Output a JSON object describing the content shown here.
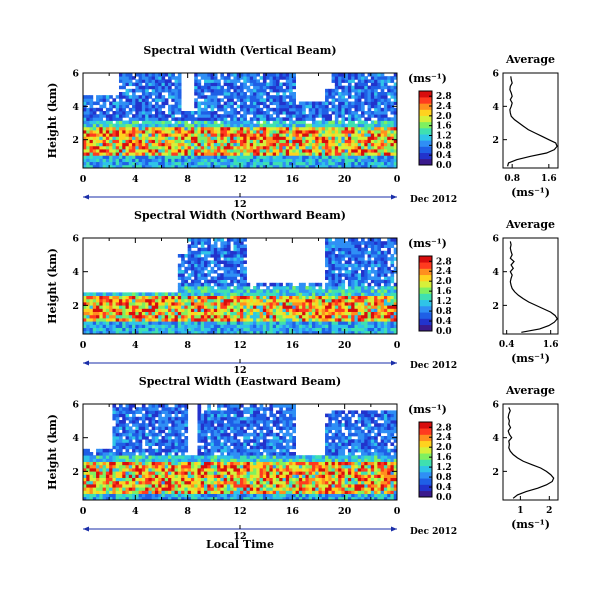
{
  "figure": {
    "date_label": "Dec 2012",
    "day_label": "12",
    "xlabel": "Local Time",
    "colorbar_unit": "(ms⁻¹)",
    "colormap": [
      "#3a1a8c",
      "#2233cc",
      "#1f5fe6",
      "#2f8ff5",
      "#2fc4e8",
      "#3fe0b0",
      "#7ff060",
      "#d6f03a",
      "#ffd21f",
      "#ff8f1f",
      "#ff3b1f",
      "#d80d0d"
    ]
  },
  "chart_data": [
    {
      "type": "heatmap",
      "title": "Spectral Width (Vertical Beam)",
      "xlabel": "Local Time",
      "ylabel": "Height (km)",
      "x_ticks": [
        "0",
        "4",
        "8",
        "12",
        "16",
        "20",
        "0"
      ],
      "y_ticks": [
        "2",
        "4",
        "6"
      ],
      "xlim": [
        0,
        24
      ],
      "ylim": [
        0.3,
        6
      ],
      "colorbar": {
        "label": "(ms⁻¹)",
        "ticks": [
          "0.0",
          "0.4",
          "0.8",
          "1.2",
          "1.6",
          "2.0",
          "2.4",
          "2.8"
        ],
        "range": [
          0,
          2.8
        ]
      },
      "profile": {
        "title": "Average",
        "xlabel": "(ms⁻¹)",
        "x_ticks": [
          "0.8",
          "1.6"
        ],
        "xlim": [
          0.6,
          1.8
        ],
        "y_ticks": [
          "2",
          "4",
          "6"
        ],
        "ylim": [
          0.3,
          6
        ],
        "height": [
          0.4,
          0.6,
          0.8,
          1.0,
          1.2,
          1.4,
          1.6,
          1.8,
          2.0,
          2.2,
          2.4,
          2.6,
          2.8,
          3.0,
          3.2,
          3.4,
          3.6,
          3.8,
          4.0,
          4.2,
          4.4,
          4.6,
          4.8,
          5.0,
          5.2,
          5.4,
          5.6,
          5.8
        ],
        "value": [
          0.7,
          0.72,
          0.9,
          1.2,
          1.55,
          1.72,
          1.78,
          1.75,
          1.6,
          1.45,
          1.3,
          1.15,
          1.05,
          0.95,
          0.85,
          0.78,
          0.76,
          0.75,
          0.78,
          0.8,
          0.76,
          0.8,
          0.78,
          0.75,
          0.76,
          0.8,
          0.78,
          0.77
        ]
      }
    },
    {
      "type": "heatmap",
      "title": "Spectral Width (Northward Beam)",
      "xlabel": "Local Time",
      "ylabel": "Height (km)",
      "x_ticks": [
        "0",
        "4",
        "8",
        "12",
        "16",
        "20",
        "0"
      ],
      "y_ticks": [
        "2",
        "4",
        "6"
      ],
      "xlim": [
        0,
        24
      ],
      "ylim": [
        0.3,
        6
      ],
      "colorbar": {
        "label": "(ms⁻¹)",
        "ticks": [
          "0.0",
          "0.4",
          "0.8",
          "1.2",
          "1.6",
          "2.0",
          "2.4",
          "2.8"
        ],
        "range": [
          0,
          2.8
        ]
      },
      "profile": {
        "title": "Average",
        "xlabel": "(ms⁻¹)",
        "x_ticks": [
          "0.4",
          "1.6"
        ],
        "xlim": [
          0.3,
          1.8
        ],
        "y_ticks": [
          "2",
          "4",
          "6"
        ],
        "ylim": [
          0.3,
          6
        ],
        "height": [
          0.4,
          0.6,
          0.8,
          1.0,
          1.2,
          1.4,
          1.6,
          1.8,
          2.0,
          2.2,
          2.4,
          2.6,
          2.8,
          3.0,
          3.2,
          3.4,
          3.6,
          3.8,
          4.0,
          4.2,
          4.4,
          4.6,
          4.8,
          5.0,
          5.2,
          5.4,
          5.6,
          5.8
        ],
        "value": [
          0.8,
          1.3,
          1.55,
          1.7,
          1.78,
          1.72,
          1.6,
          1.4,
          1.2,
          1.0,
          0.85,
          0.72,
          0.62,
          0.55,
          0.52,
          0.5,
          0.52,
          0.55,
          0.5,
          0.58,
          0.52,
          0.6,
          0.5,
          0.55,
          0.52,
          0.5,
          0.52,
          0.5
        ]
      }
    },
    {
      "type": "heatmap",
      "title": "Spectral Width (Eastward Beam)",
      "xlabel": "Local Time",
      "ylabel": "Height (km)",
      "x_ticks": [
        "0",
        "4",
        "8",
        "12",
        "16",
        "20",
        "0"
      ],
      "y_ticks": [
        "2",
        "4",
        "6"
      ],
      "xlim": [
        0,
        24
      ],
      "ylim": [
        0.3,
        6
      ],
      "colorbar": {
        "label": "(ms⁻¹)",
        "ticks": [
          "0.0",
          "0.4",
          "0.8",
          "1.2",
          "1.6",
          "2.0",
          "2.4",
          "2.8"
        ],
        "range": [
          0,
          2.8
        ]
      },
      "profile": {
        "title": "Average",
        "xlabel": "(ms⁻¹)",
        "x_ticks": [
          "1",
          "2"
        ],
        "xlim": [
          0.4,
          2.3
        ],
        "y_ticks": [
          "2",
          "4",
          "6"
        ],
        "ylim": [
          0.3,
          6
        ],
        "height": [
          0.4,
          0.6,
          0.8,
          1.0,
          1.2,
          1.4,
          1.6,
          1.8,
          2.0,
          2.2,
          2.4,
          2.6,
          2.8,
          3.0,
          3.2,
          3.4,
          3.6,
          3.8,
          4.0,
          4.2,
          4.4,
          4.6,
          4.8,
          5.0,
          5.2,
          5.4,
          5.6,
          5.8
        ],
        "value": [
          0.75,
          0.9,
          1.2,
          1.6,
          1.9,
          2.1,
          2.15,
          2.05,
          1.9,
          1.7,
          1.4,
          1.1,
          0.9,
          0.75,
          0.65,
          0.6,
          0.62,
          0.6,
          0.7,
          0.62,
          0.58,
          0.66,
          0.6,
          0.62,
          0.58,
          0.6,
          0.65,
          0.6
        ]
      }
    }
  ]
}
